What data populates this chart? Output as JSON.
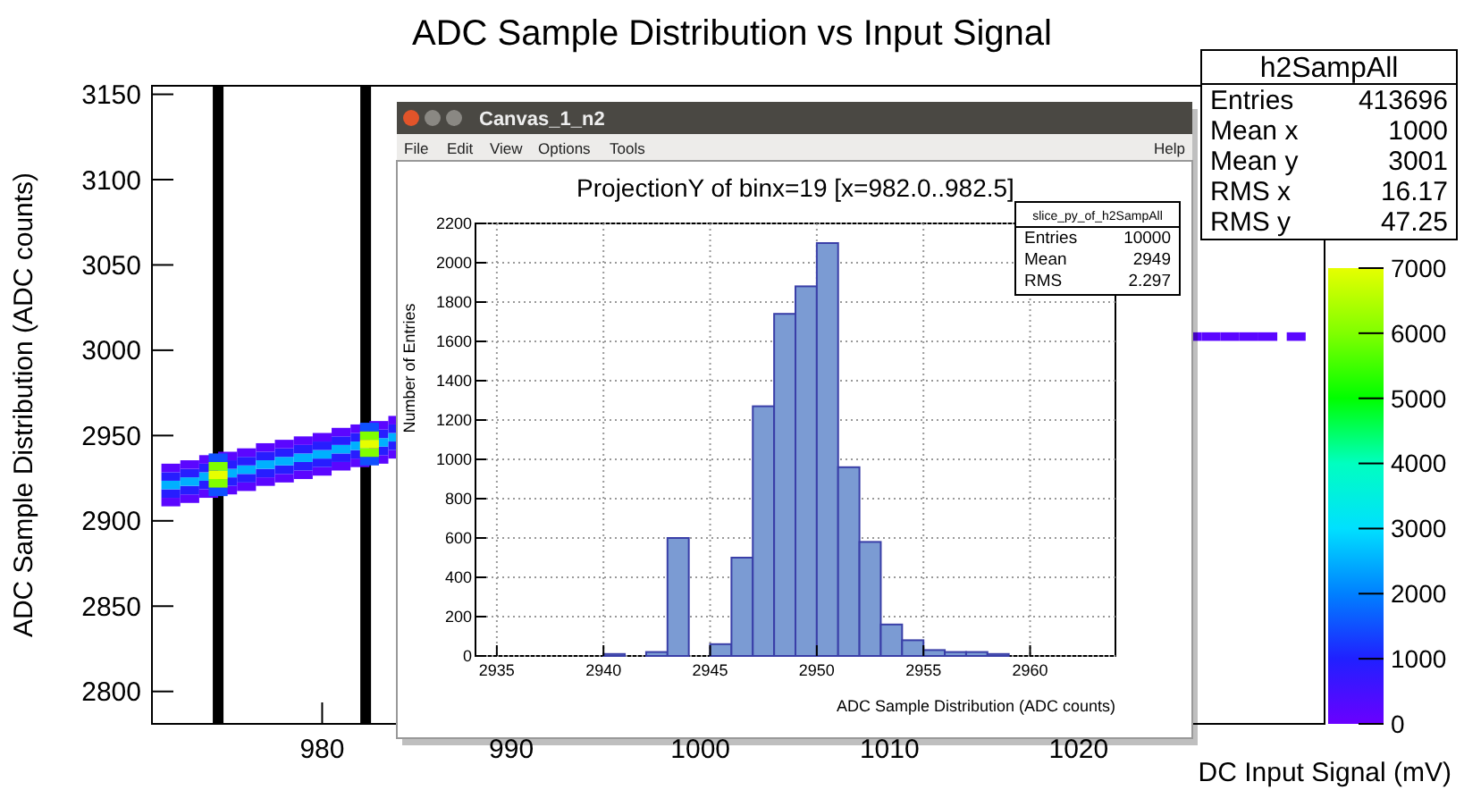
{
  "chart_data": [
    {
      "type": "scatter",
      "title": "ADC Sample Distribution vs Input Signal",
      "xlabel": "DC Input Signal (mV)",
      "ylabel": "ADC Sample Distribution (ADC counts)",
      "xlim": [
        971,
        1033
      ],
      "ylim": [
        2781,
        3155
      ],
      "xticks": [
        980,
        990,
        1000,
        1010,
        1020
      ],
      "yticks": [
        2800,
        2850,
        2900,
        2950,
        3000,
        3050,
        3100,
        3150
      ],
      "clim": [
        0,
        7000
      ],
      "cticks": [
        0,
        1000,
        2000,
        3000,
        4000,
        5000,
        6000,
        7000
      ],
      "marker": "square",
      "grid": false,
      "ref_lines": [
        {
          "axis": "x",
          "value": 974.5,
          "color": "#000000"
        },
        {
          "axis": "x",
          "value": 982.3,
          "color": "#000000"
        }
      ],
      "annotations": [
        "h2SampAll",
        "Entries",
        "413696",
        "Mean x",
        "1000",
        "Mean y",
        "3001",
        "RMS x",
        "16.17",
        "RMS y",
        "47.25"
      ],
      "series": [
        {
          "x": [
            972,
            972,
            972,
            972,
            972,
            973,
            973,
            973,
            973,
            973,
            974,
            974,
            974,
            974,
            974,
            975,
            975,
            975,
            975,
            975,
            976,
            976,
            976,
            976,
            976,
            977,
            977,
            977,
            977,
            977,
            978,
            978,
            978,
            978,
            978,
            979,
            979,
            979,
            979,
            979,
            980,
            980,
            980,
            980,
            980,
            981,
            981,
            981,
            981,
            981,
            982,
            982,
            982,
            982,
            982,
            983,
            983,
            983,
            983,
            983,
            984,
            984,
            984,
            984,
            984,
            974.5,
            974.5,
            974.5,
            974.5,
            974.5,
            982.5,
            982.5,
            982.5,
            982.5,
            982.5,
            1026,
            1027,
            1028,
            1029,
            1030,
            1031.5
          ],
          "values": [
            2911,
            2916,
            2921,
            2926,
            2931,
            2913,
            2918,
            2923,
            2928,
            2933,
            2916,
            2921,
            2926,
            2931,
            2936,
            2918,
            2923,
            2928,
            2933,
            2938,
            2920,
            2925,
            2930,
            2935,
            2940,
            2923,
            2928,
            2933,
            2938,
            2943,
            2925,
            2930,
            2935,
            2940,
            2945,
            2927,
            2932,
            2937,
            2942,
            2947,
            2929,
            2934,
            2939,
            2944,
            2949,
            2932,
            2937,
            2942,
            2947,
            2952,
            2934,
            2939,
            2944,
            2949,
            2954,
            2936,
            2941,
            2946,
            2951,
            2956,
            2939,
            2944,
            2949,
            2954,
            2959,
            2917,
            2922,
            2927,
            2932,
            2937,
            2935,
            2940,
            2945,
            2950,
            2955,
            3008,
            3008,
            3008,
            3008,
            3008,
            3008
          ],
          "cvalues": [
            200,
            900,
            2500,
            900,
            200,
            200,
            900,
            2500,
            900,
            200,
            200,
            900,
            2500,
            900,
            200,
            200,
            900,
            2500,
            900,
            200,
            200,
            900,
            2500,
            900,
            200,
            200,
            900,
            2500,
            900,
            200,
            200,
            900,
            2500,
            900,
            200,
            200,
            900,
            2500,
            900,
            200,
            200,
            900,
            2500,
            900,
            200,
            200,
            900,
            2500,
            900,
            200,
            200,
            900,
            2500,
            900,
            200,
            200,
            900,
            2500,
            900,
            200,
            200,
            900,
            2500,
            900,
            200,
            1500,
            6000,
            7000,
            6000,
            1500,
            1500,
            6000,
            7000,
            6000,
            1500,
            200,
            200,
            200,
            200,
            200,
            200
          ]
        }
      ]
    },
    {
      "type": "histogram",
      "title": "ProjectionY of binx=19 [x=982.0..982.5]",
      "xlabel": "ADC Sample Distribution (ADC counts)",
      "ylabel": "Number of Entries",
      "bins": [
        2934,
        2935,
        2936,
        2937,
        2938,
        2939,
        2940,
        2941,
        2942,
        2943,
        2944,
        2945,
        2946,
        2947,
        2948,
        2949,
        2950,
        2951,
        2952,
        2953,
        2954,
        2955,
        2956,
        2957,
        2958,
        2959,
        2960,
        2961,
        2962,
        2963,
        2964
      ],
      "values": [
        0,
        0,
        0,
        0,
        0,
        0,
        10,
        0,
        20,
        600,
        0,
        60,
        500,
        1270,
        1740,
        1880,
        2100,
        960,
        580,
        160,
        80,
        30,
        20,
        20,
        10,
        0,
        0,
        0,
        0,
        0
      ],
      "color": "#7b9bd3",
      "xlim": [
        2934,
        2964
      ],
      "ylim": [
        0,
        2200
      ],
      "xticks": [
        2935,
        2940,
        2945,
        2950,
        2955,
        2960
      ],
      "yticks": [
        0,
        200,
        400,
        600,
        800,
        1000,
        1200,
        1400,
        1600,
        1800,
        2000,
        2200
      ],
      "grid": true,
      "annotations": [
        "Canvas_1_n2",
        "File",
        "Edit",
        "View",
        "Options",
        "Tools",
        "Help",
        "slice_py_of_h2SampAll",
        "Entries",
        "10000",
        "Mean",
        "2949",
        "RMS",
        "2.297"
      ]
    }
  ]
}
